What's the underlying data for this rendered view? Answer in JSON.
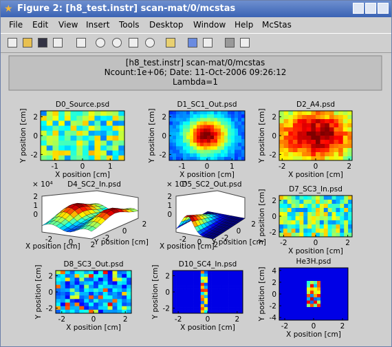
{
  "window": {
    "title": "Figure 2: [h8_test.instr] scan-mat/0/mcstas"
  },
  "menu": [
    "File",
    "Edit",
    "View",
    "Insert",
    "Tools",
    "Desktop",
    "Window",
    "Help",
    "McStas"
  ],
  "header": [
    "[h8_test.instr] scan-mat/0/mcstas",
    "Ncount:1e+06; Date: 11-Oct-2006 09:26:12",
    "Lambda=1"
  ],
  "plots": [
    {
      "title": "D0_Source.psd",
      "xlabel": "X position [cm]",
      "ylabel": "Y position [cm]",
      "xticks": [
        -1,
        0,
        1
      ],
      "yticks": [
        2,
        0,
        -2
      ]
    },
    {
      "title": "D1_SC1_Out.psd",
      "xlabel": "X position [cm]",
      "ylabel": "Y position [cm]",
      "xticks": [
        -1,
        0,
        1
      ],
      "yticks": [
        2,
        0,
        -2
      ]
    },
    {
      "title": "D2_A4.psd",
      "xlabel": "X position [cm]",
      "ylabel": "Y position [cm]",
      "xticks": [
        -2,
        0,
        2
      ],
      "yticks": [
        2,
        0,
        -2
      ]
    },
    {
      "title": "D4_SC2_In.psd",
      "scale": "× 10⁴",
      "xlabel": "X position [cm]",
      "ylabel": "Y position [cm]",
      "xticks": [
        -2,
        0,
        2
      ],
      "yticks": [
        -2,
        0,
        2
      ],
      "zticks": [
        2,
        1,
        0
      ]
    },
    {
      "title": "D5_SC2_Out.psd",
      "scale": "× 10⁵",
      "xlabel": "X position [cm]",
      "ylabel": "Y position [cm]",
      "xticks": [
        -2,
        0,
        2
      ],
      "yticks": [
        -2,
        0,
        2
      ],
      "zticks": [
        2,
        1,
        0
      ]
    },
    {
      "title": "D7_SC3_In.psd",
      "xlabel": "X position [cm]",
      "ylabel": "Y position [cm]",
      "xticks": [
        -2,
        0,
        2
      ],
      "yticks": [
        2,
        0,
        -2
      ]
    },
    {
      "title": "D8_SC3_Out.psd",
      "xlabel": "X position [cm]",
      "ylabel": "Y position [cm]",
      "xticks": [
        -2,
        0,
        2
      ],
      "yticks": [
        2,
        0,
        -2
      ]
    },
    {
      "title": "D10_SC4_In.psd",
      "xlabel": "X position [cm]",
      "ylabel": "Y position [cm]",
      "xticks": [
        -2,
        0,
        2
      ],
      "yticks": [
        2,
        0,
        -2
      ]
    },
    {
      "title": "He3H.psd",
      "xlabel": "X position [cm]",
      "ylabel": "Y position [cm]",
      "xticks": [
        -2,
        0,
        2
      ],
      "yticks": [
        4,
        2,
        0,
        -2,
        -4
      ]
    }
  ]
}
